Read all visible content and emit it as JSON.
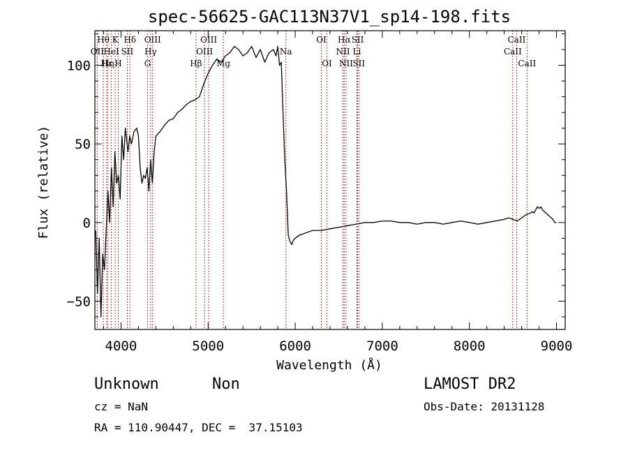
{
  "footer": {
    "object_class": "Unknown",
    "object_subclass": "Non",
    "survey": "LAMOST DR2",
    "cz": "cz = NaN",
    "obs_date": "Obs-Date: 20131128",
    "coords": "RA = 110.90447, DEC =  37.15103"
  },
  "chart_data": {
    "type": "line",
    "title": "spec-56625-GAC113N37V1_sp14-198.fits",
    "xlabel": "Wavelength (Å)",
    "ylabel": "Flux (relative)",
    "xlim": [
      3700,
      9100
    ],
    "ylim": [
      -68,
      122
    ],
    "x_ticks": [
      4000,
      5000,
      6000,
      7000,
      8000,
      9000
    ],
    "y_ticks": [
      -50,
      0,
      50,
      100
    ],
    "y_tick_labels": [
      "−50",
      "0",
      "50",
      "100"
    ],
    "grid": false,
    "line_color": "#000000",
    "marker_color": "#8b0000",
    "series": [
      {
        "x": [
          3710,
          3730,
          3750,
          3770,
          3790,
          3810,
          3830,
          3850,
          3870,
          3890,
          3910,
          3930,
          3950,
          3970,
          3990,
          4010,
          4030,
          4050,
          4080,
          4100,
          4120,
          4150,
          4180,
          4200,
          4220,
          4240,
          4260,
          4280,
          4300,
          4320,
          4340,
          4360,
          4380,
          4400,
          4450,
          4500,
          4550,
          4600,
          4650,
          4700,
          4750,
          4800,
          4850,
          4900,
          4950,
          5000,
          5050,
          5100,
          5150,
          5200,
          5250,
          5300,
          5350,
          5400,
          5450,
          5500,
          5550,
          5600,
          5650,
          5700,
          5750,
          5780,
          5800,
          5820,
          5840,
          5860,
          5880,
          5900,
          5920,
          5940,
          5960,
          5980,
          6000,
          6050,
          6100,
          6150,
          6200,
          6300,
          6400,
          6500,
          6600,
          6700,
          6800,
          6900,
          7000,
          7100,
          7200,
          7300,
          7400,
          7500,
          7600,
          7700,
          7800,
          7900,
          8000,
          8100,
          8200,
          8300,
          8400,
          8450,
          8500,
          8550,
          8600,
          8650,
          8700,
          8720,
          8740,
          8760,
          8780,
          8800,
          8820,
          8840,
          8860,
          8880,
          8900,
          8920,
          8940,
          8960,
          8980,
          9000
        ],
        "values": [
          -5,
          -45,
          -10,
          -60,
          -20,
          -30,
          -5,
          20,
          0,
          35,
          10,
          45,
          25,
          30,
          15,
          55,
          40,
          60,
          45,
          55,
          50,
          58,
          60,
          55,
          35,
          25,
          30,
          28,
          35,
          20,
          40,
          25,
          45,
          55,
          58,
          62,
          65,
          66,
          70,
          72,
          75,
          77,
          78,
          80,
          88,
          95,
          100,
          104,
          102,
          106,
          108,
          112,
          110,
          106,
          108,
          112,
          105,
          110,
          102,
          108,
          110,
          106,
          112,
          100,
          102,
          70,
          40,
          20,
          -8,
          -12,
          -14,
          -11,
          -10,
          -8,
          -7,
          -6,
          -5,
          -5,
          -4,
          -3,
          -2,
          -1,
          0,
          0,
          1,
          1,
          0,
          0,
          -1,
          0,
          0,
          -1,
          0,
          1,
          0,
          -1,
          0,
          1,
          2,
          3,
          2,
          1,
          3,
          5,
          6,
          7,
          6,
          8,
          10,
          9,
          10,
          8,
          7,
          6,
          5,
          4,
          3,
          2,
          0,
          0
        ]
      }
    ],
    "line_markers": [
      {
        "label": "Hθ",
        "x": 3797,
        "row": 0
      },
      {
        "label": "OII",
        "x": 3727,
        "row": 1
      },
      {
        "label": "Hε",
        "x": 3835,
        "row": 2
      },
      {
        "label": "K",
        "x": 3933,
        "row": 0
      },
      {
        "label": "HeI",
        "x": 3889,
        "row": 1
      },
      {
        "label": "Hη",
        "x": 3850,
        "row": 2
      },
      {
        "label": "H",
        "x": 3968,
        "row": 2
      },
      {
        "label": "Hδ",
        "x": 4102,
        "row": 0
      },
      {
        "label": "SII",
        "x": 4072,
        "row": 1
      },
      {
        "label": "OIII",
        "x": 4363,
        "row": 0
      },
      {
        "label": "Hγ",
        "x": 4340,
        "row": 1
      },
      {
        "label": "G",
        "x": 4305,
        "row": 2
      },
      {
        "label": "OIII",
        "x": 5007,
        "row": 0
      },
      {
        "label": "OIII",
        "x": 4959,
        "row": 1
      },
      {
        "label": "Hβ",
        "x": 4861,
        "row": 2
      },
      {
        "label": "Mg",
        "x": 5175,
        "row": 2
      },
      {
        "label": "Na",
        "x": 5893,
        "row": 1
      },
      {
        "label": "OI",
        "x": 6300,
        "row": 0
      },
      {
        "label": "OI",
        "x": 6364,
        "row": 2
      },
      {
        "label": "Hα",
        "x": 6563,
        "row": 0
      },
      {
        "label": "NII",
        "x": 6548,
        "row": 1
      },
      {
        "label": "NII",
        "x": 6584,
        "row": 2
      },
      {
        "label": "SII",
        "x": 6717,
        "row": 0
      },
      {
        "label": "Li",
        "x": 6708,
        "row": 1
      },
      {
        "label": "SII",
        "x": 6731,
        "row": 2
      },
      {
        "label": "CaII",
        "x": 8542,
        "row": 0
      },
      {
        "label": "CaII",
        "x": 8498,
        "row": 1
      },
      {
        "label": "CaII",
        "x": 8662,
        "row": 2
      }
    ]
  }
}
